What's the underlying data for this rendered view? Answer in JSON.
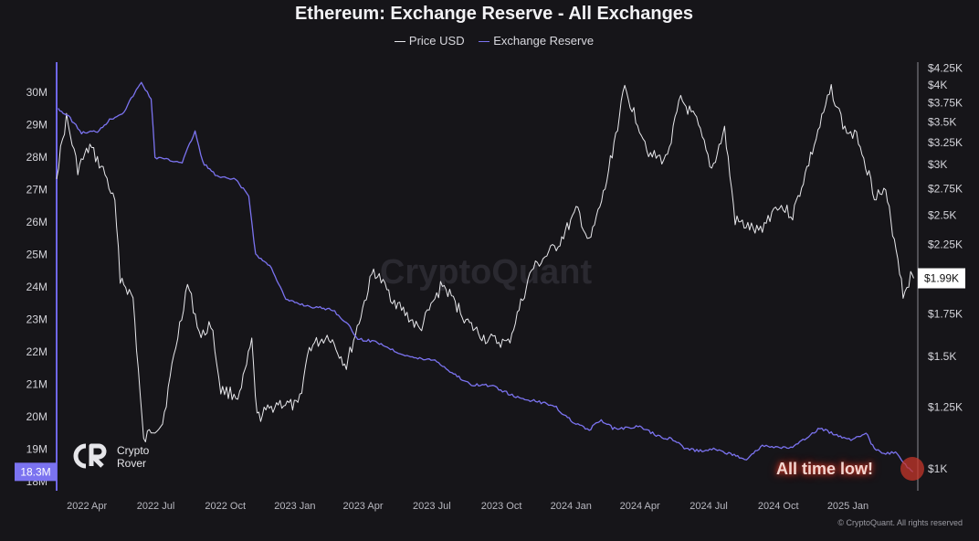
{
  "chart_data": {
    "type": "line",
    "title": "Ethereum: Exchange Reserve - All Exchanges",
    "legend": [
      {
        "name": "Price USD",
        "color": "#e8e8ec"
      },
      {
        "name": "Exchange Reserve",
        "color": "#7b73f0"
      }
    ],
    "legend_position": "top-center",
    "grid": false,
    "watermark": "CryptoQuant",
    "x_ticks": [
      "2022 Apr",
      "2022 Jul",
      "2022 Oct",
      "2023 Jan",
      "2023 Apr",
      "2023 Jul",
      "2023 Oct",
      "2024 Jan",
      "2024 Apr",
      "2024 Jul",
      "2024 Oct",
      "2025 Jan"
    ],
    "x_range": [
      "2022-02-20",
      "2025-04-01"
    ],
    "y_left": {
      "label": "",
      "ticks": [
        "30M",
        "29M",
        "28M",
        "27M",
        "26M",
        "25M",
        "24M",
        "23M",
        "22M",
        "21M",
        "20M",
        "19M",
        "18M"
      ],
      "ylim": [
        17.85,
        30.4
      ],
      "current_badge": "18.3M"
    },
    "y_right": {
      "label": "",
      "scale": "log",
      "ticks": [
        "$4.25K",
        "$4K",
        "$3.75K",
        "$3.5K",
        "$3.25K",
        "$3K",
        "$2.75K",
        "$2.5K",
        "$2.25K",
        "$2K",
        "$1.75K",
        "$1.5K",
        "$1.25K",
        "$1K"
      ],
      "current_badge": "$1.99K"
    },
    "series": [
      {
        "name": "Exchange Reserve",
        "axis": "left",
        "unit": "M",
        "values": [
          [
            "2022-02-22",
            29.5
          ],
          [
            "2022-03-10",
            29.2
          ],
          [
            "2022-03-25",
            28.75
          ],
          [
            "2022-04-15",
            28.8
          ],
          [
            "2022-05-01",
            29.15
          ],
          [
            "2022-05-20",
            29.4
          ],
          [
            "2022-06-01",
            29.9
          ],
          [
            "2022-06-12",
            30.3
          ],
          [
            "2022-06-25",
            29.8
          ],
          [
            "2022-06-30",
            28.0
          ],
          [
            "2022-07-20",
            27.9
          ],
          [
            "2022-08-05",
            27.85
          ],
          [
            "2022-08-22",
            28.8
          ],
          [
            "2022-09-01",
            27.85
          ],
          [
            "2022-09-20",
            27.4
          ],
          [
            "2022-10-15",
            27.3
          ],
          [
            "2022-11-01",
            26.8
          ],
          [
            "2022-11-10",
            25.0
          ],
          [
            "2022-12-01",
            24.6
          ],
          [
            "2022-12-20",
            23.6
          ],
          [
            "2023-01-20",
            23.4
          ],
          [
            "2023-02-20",
            23.3
          ],
          [
            "2023-03-10",
            22.9
          ],
          [
            "2023-03-25",
            22.4
          ],
          [
            "2023-04-20",
            22.3
          ],
          [
            "2023-05-15",
            22.0
          ],
          [
            "2023-06-10",
            21.8
          ],
          [
            "2023-07-05",
            21.75
          ],
          [
            "2023-07-25",
            21.4
          ],
          [
            "2023-08-20",
            21.0
          ],
          [
            "2023-09-20",
            20.95
          ],
          [
            "2023-10-20",
            20.6
          ],
          [
            "2023-11-20",
            20.45
          ],
          [
            "2023-12-10",
            20.35
          ],
          [
            "2023-12-25",
            20.0
          ],
          [
            "2024-01-10",
            19.75
          ],
          [
            "2024-01-25",
            19.6
          ],
          [
            "2024-02-10",
            19.9
          ],
          [
            "2024-02-25",
            19.65
          ],
          [
            "2024-03-15",
            19.65
          ],
          [
            "2024-04-01",
            19.7
          ],
          [
            "2024-04-25",
            19.4
          ],
          [
            "2024-05-15",
            19.3
          ],
          [
            "2024-06-01",
            19.0
          ],
          [
            "2024-06-20",
            18.95
          ],
          [
            "2024-07-10",
            19.0
          ],
          [
            "2024-07-30",
            18.85
          ],
          [
            "2024-08-20",
            18.7
          ],
          [
            "2024-09-10",
            19.1
          ],
          [
            "2024-09-30",
            19.05
          ],
          [
            "2024-10-20",
            19.05
          ],
          [
            "2024-11-05",
            19.3
          ],
          [
            "2024-11-25",
            19.65
          ],
          [
            "2024-12-15",
            19.45
          ],
          [
            "2025-01-05",
            19.3
          ],
          [
            "2025-01-25",
            19.5
          ],
          [
            "2025-02-05",
            19.0
          ],
          [
            "2025-02-20",
            18.85
          ],
          [
            "2025-03-05",
            18.9
          ],
          [
            "2025-03-18",
            18.5
          ],
          [
            "2025-03-28",
            18.3
          ]
        ]
      },
      {
        "name": "Price USD",
        "axis": "right",
        "unit": "$",
        "values": [
          [
            "2022-02-20",
            2900
          ],
          [
            "2022-03-05",
            3550
          ],
          [
            "2022-03-20",
            2950
          ],
          [
            "2022-04-05",
            3200
          ],
          [
            "2022-04-25",
            2900
          ],
          [
            "2022-05-08",
            2600
          ],
          [
            "2022-05-15",
            2000
          ],
          [
            "2022-06-01",
            1850
          ],
          [
            "2022-06-15",
            1100
          ],
          [
            "2022-06-25",
            1150
          ],
          [
            "2022-07-10",
            1180
          ],
          [
            "2022-07-25",
            1500
          ],
          [
            "2022-08-12",
            1950
          ],
          [
            "2022-08-30",
            1600
          ],
          [
            "2022-09-12",
            1700
          ],
          [
            "2022-09-25",
            1330
          ],
          [
            "2022-10-20",
            1300
          ],
          [
            "2022-11-05",
            1580
          ],
          [
            "2022-11-12",
            1200
          ],
          [
            "2022-12-10",
            1270
          ],
          [
            "2023-01-05",
            1250
          ],
          [
            "2023-01-20",
            1550
          ],
          [
            "2023-02-15",
            1620
          ],
          [
            "2023-03-10",
            1450
          ],
          [
            "2023-04-15",
            2050
          ],
          [
            "2023-05-10",
            1850
          ],
          [
            "2023-06-15",
            1650
          ],
          [
            "2023-07-15",
            1950
          ],
          [
            "2023-08-20",
            1680
          ],
          [
            "2023-09-10",
            1600
          ],
          [
            "2023-10-10",
            1570
          ],
          [
            "2023-11-10",
            2050
          ],
          [
            "2023-12-15",
            2250
          ],
          [
            "2024-01-10",
            2550
          ],
          [
            "2024-01-25",
            2250
          ],
          [
            "2024-02-15",
            2750
          ],
          [
            "2024-03-12",
            3950
          ],
          [
            "2024-04-15",
            3100
          ],
          [
            "2024-05-05",
            3050
          ],
          [
            "2024-05-25",
            3800
          ],
          [
            "2024-06-15",
            3500
          ],
          [
            "2024-07-05",
            2950
          ],
          [
            "2024-07-22",
            3400
          ],
          [
            "2024-08-05",
            2450
          ],
          [
            "2024-09-05",
            2350
          ],
          [
            "2024-09-30",
            2600
          ],
          [
            "2024-10-20",
            2500
          ],
          [
            "2024-11-15",
            3150
          ],
          [
            "2024-12-10",
            3950
          ],
          [
            "2024-12-28",
            3400
          ],
          [
            "2025-01-15",
            3300
          ],
          [
            "2025-02-05",
            2700
          ],
          [
            "2025-02-20",
            2700
          ],
          [
            "2025-03-08",
            2150
          ],
          [
            "2025-03-15",
            1880
          ],
          [
            "2025-03-25",
            2000
          ],
          [
            "2025-03-29",
            1990
          ]
        ]
      }
    ]
  },
  "annotation": "All time low!",
  "logo_text": [
    "Crypto",
    "Rover"
  ],
  "footer": "© CryptoQuant. All rights reserved"
}
